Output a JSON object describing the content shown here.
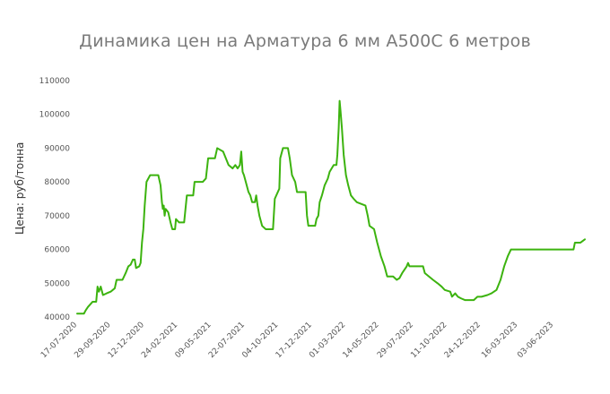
{
  "chart_data": {
    "type": "line",
    "title": "Динамика цен на Арматура 6 мм А500С 6 метров",
    "xlabel": "",
    "ylabel": "Цена: руб/тонна",
    "ylim": [
      40000,
      110000
    ],
    "yticks": [
      40000,
      50000,
      60000,
      70000,
      80000,
      90000,
      100000,
      110000
    ],
    "ytick_labels": [
      "40000",
      "50000",
      "60000",
      "70000",
      "80000",
      "90000",
      "100000",
      "110000"
    ],
    "xlim": [
      "2020-07-17",
      "2023-08-15"
    ],
    "xticks": [
      "2020-07-17",
      "2020-09-29",
      "2020-12-12",
      "2021-02-24",
      "2021-05-09",
      "2021-07-22",
      "2021-10-04",
      "2021-12-17",
      "2022-03-01",
      "2022-05-14",
      "2022-07-29",
      "2022-10-11",
      "2022-12-24",
      "2023-03-16",
      "2023-06-03"
    ],
    "xtick_labels": [
      "17-07-2020",
      "29-09-2020",
      "12-12-2020",
      "24-02-2021",
      "09-05-2021",
      "22-07-2021",
      "04-10-2021",
      "17-12-2021",
      "01-03-2022",
      "14-05-2022",
      "29-07-2022",
      "11-10-2022",
      "24-12-2022",
      "16-03-2023",
      "03-06-2023"
    ],
    "grid": false,
    "legend": "none",
    "series": [
      {
        "color": "#3cb30f",
        "points": [
          [
            "2020-07-17",
            41000
          ],
          [
            "2020-08-01",
            41000
          ],
          [
            "2020-08-05",
            42000
          ],
          [
            "2020-08-10",
            43000
          ],
          [
            "2020-08-20",
            44500
          ],
          [
            "2020-08-28",
            44500
          ],
          [
            "2020-08-31",
            49000
          ],
          [
            "2020-09-03",
            47500
          ],
          [
            "2020-09-07",
            49000
          ],
          [
            "2020-09-12",
            46500
          ],
          [
            "2020-09-20",
            47000
          ],
          [
            "2020-09-29",
            47500
          ],
          [
            "2020-10-08",
            48500
          ],
          [
            "2020-10-12",
            51000
          ],
          [
            "2020-10-25",
            51000
          ],
          [
            "2020-11-01",
            53000
          ],
          [
            "2020-11-07",
            55000
          ],
          [
            "2020-11-12",
            55500
          ],
          [
            "2020-11-17",
            57000
          ],
          [
            "2020-11-21",
            57000
          ],
          [
            "2020-11-24",
            54500
          ],
          [
            "2020-12-01",
            55000
          ],
          [
            "2020-12-04",
            56000
          ],
          [
            "2020-12-07",
            62000
          ],
          [
            "2020-12-10",
            66000
          ],
          [
            "2020-12-13",
            73000
          ],
          [
            "2020-12-17",
            80000
          ],
          [
            "2020-12-25",
            82000
          ],
          [
            "2021-01-12",
            82000
          ],
          [
            "2021-01-17",
            79000
          ],
          [
            "2021-01-20",
            74000
          ],
          [
            "2021-01-22",
            72000
          ],
          [
            "2021-01-24",
            73000
          ],
          [
            "2021-01-26",
            70000
          ],
          [
            "2021-01-28",
            72000
          ],
          [
            "2021-02-03",
            71000
          ],
          [
            "2021-02-08",
            68000
          ],
          [
            "2021-02-12",
            66000
          ],
          [
            "2021-02-18",
            66000
          ],
          [
            "2021-02-20",
            69000
          ],
          [
            "2021-02-27",
            68000
          ],
          [
            "2021-03-10",
            68000
          ],
          [
            "2021-03-16",
            76000
          ],
          [
            "2021-03-30",
            76000
          ],
          [
            "2021-04-02",
            80000
          ],
          [
            "2021-04-20",
            80000
          ],
          [
            "2021-04-27",
            81000
          ],
          [
            "2021-05-02",
            87000
          ],
          [
            "2021-05-17",
            87000
          ],
          [
            "2021-05-22",
            90000
          ],
          [
            "2021-06-04",
            89000
          ],
          [
            "2021-06-10",
            87000
          ],
          [
            "2021-06-16",
            85000
          ],
          [
            "2021-06-25",
            84000
          ],
          [
            "2021-07-01",
            85000
          ],
          [
            "2021-07-06",
            84000
          ],
          [
            "2021-07-11",
            85000
          ],
          [
            "2021-07-14",
            89000
          ],
          [
            "2021-07-17",
            83000
          ],
          [
            "2021-07-20",
            82000
          ],
          [
            "2021-07-24",
            80000
          ],
          [
            "2021-07-30",
            77000
          ],
          [
            "2021-08-03",
            76000
          ],
          [
            "2021-08-07",
            74000
          ],
          [
            "2021-08-13",
            74000
          ],
          [
            "2021-08-16",
            76000
          ],
          [
            "2021-08-19",
            73000
          ],
          [
            "2021-08-23",
            70000
          ],
          [
            "2021-08-29",
            67000
          ],
          [
            "2021-09-06",
            66000
          ],
          [
            "2021-09-22",
            66000
          ],
          [
            "2021-09-26",
            75000
          ],
          [
            "2021-10-06",
            78000
          ],
          [
            "2021-10-08",
            87000
          ],
          [
            "2021-10-14",
            90000
          ],
          [
            "2021-10-25",
            90000
          ],
          [
            "2021-10-29",
            87000
          ],
          [
            "2021-11-03",
            82000
          ],
          [
            "2021-11-10",
            80000
          ],
          [
            "2021-11-14",
            77000
          ],
          [
            "2021-12-03",
            77000
          ],
          [
            "2021-12-06",
            70000
          ],
          [
            "2021-12-09",
            67000
          ],
          [
            "2021-12-24",
            67000
          ],
          [
            "2021-12-27",
            69000
          ],
          [
            "2021-12-31",
            70000
          ],
          [
            "2022-01-03",
            74000
          ],
          [
            "2022-01-08",
            76000
          ],
          [
            "2022-01-14",
            79000
          ],
          [
            "2022-01-21",
            81000
          ],
          [
            "2022-01-25",
            83000
          ],
          [
            "2022-02-03",
            85000
          ],
          [
            "2022-02-09",
            85000
          ],
          [
            "2022-02-11",
            88000
          ],
          [
            "2022-02-14",
            96000
          ],
          [
            "2022-02-16",
            104000
          ],
          [
            "2022-02-18",
            101000
          ],
          [
            "2022-02-21",
            96000
          ],
          [
            "2022-02-25",
            88000
          ],
          [
            "2022-03-02",
            82000
          ],
          [
            "2022-03-07",
            79000
          ],
          [
            "2022-03-13",
            76000
          ],
          [
            "2022-03-19",
            75000
          ],
          [
            "2022-03-26",
            74000
          ],
          [
            "2022-04-14",
            73000
          ],
          [
            "2022-04-19",
            70000
          ],
          [
            "2022-04-23",
            67000
          ],
          [
            "2022-05-03",
            66000
          ],
          [
            "2022-05-10",
            62000
          ],
          [
            "2022-05-18",
            58000
          ],
          [
            "2022-05-26",
            55000
          ],
          [
            "2022-06-01",
            52000
          ],
          [
            "2022-06-14",
            52000
          ],
          [
            "2022-06-22",
            51000
          ],
          [
            "2022-06-28",
            51500
          ],
          [
            "2022-07-04",
            53000
          ],
          [
            "2022-07-14",
            55000
          ],
          [
            "2022-07-17",
            56000
          ],
          [
            "2022-07-20",
            55000
          ],
          [
            "2022-08-19",
            55000
          ],
          [
            "2022-08-23",
            53000
          ],
          [
            "2022-09-01",
            52000
          ],
          [
            "2022-09-10",
            51000
          ],
          [
            "2022-09-20",
            50000
          ],
          [
            "2022-09-29",
            49000
          ],
          [
            "2022-10-06",
            48000
          ],
          [
            "2022-10-18",
            47500
          ],
          [
            "2022-10-22",
            46000
          ],
          [
            "2022-10-29",
            47000
          ],
          [
            "2022-11-04",
            46000
          ],
          [
            "2022-11-11",
            45500
          ],
          [
            "2022-11-20",
            45000
          ],
          [
            "2022-12-09",
            45000
          ],
          [
            "2022-12-17",
            46000
          ],
          [
            "2022-12-26",
            46000
          ],
          [
            "2023-01-08",
            46500
          ],
          [
            "2023-01-17",
            47000
          ],
          [
            "2023-01-28",
            48000
          ],
          [
            "2023-02-06",
            51000
          ],
          [
            "2023-02-14",
            55000
          ],
          [
            "2023-02-22",
            58000
          ],
          [
            "2023-03-01",
            60000
          ],
          [
            "2023-03-04",
            60000
          ],
          [
            "2023-05-15",
            60000
          ],
          [
            "2023-07-17",
            60000
          ],
          [
            "2023-07-20",
            62000
          ],
          [
            "2023-08-01",
            62000
          ],
          [
            "2023-08-06",
            62500
          ],
          [
            "2023-08-11",
            63000
          ]
        ]
      }
    ]
  }
}
